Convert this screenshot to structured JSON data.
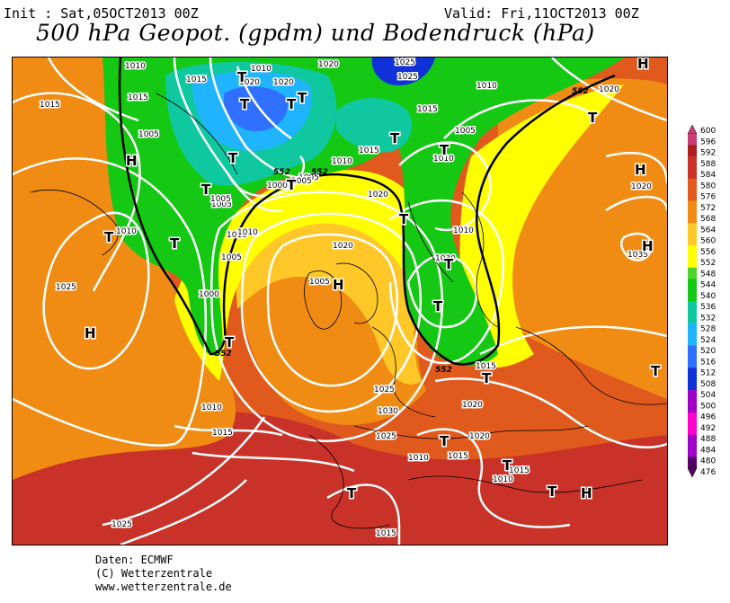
{
  "header": {
    "init": "Init : Sat,05OCT2013 00Z",
    "valid": "Valid: Fri,11OCT2013 00Z",
    "title": "500 hPa Geopot. (gpdm) und Bodendruck (hPa)"
  },
  "credits": {
    "line1": "Daten: ECMWF",
    "line2": "(C) Wetterzentrale",
    "line3": "www.wetterzentrale.de"
  },
  "colors": {
    "lowest": "#550066",
    "purple": "#a000c8",
    "magenta": "#ff00cc",
    "blue_dark": "#1030d8",
    "blue": "#3070ff",
    "cyan": "#20b4ff",
    "teal": "#10c8a0",
    "green": "#14c814",
    "green_light": "#50d228",
    "yellow": "#ffff00",
    "orange_light": "#ffc828",
    "orange": "#f08c14",
    "red_orange": "#e05a1e",
    "red": "#c83228",
    "red_dark": "#aa1e1e",
    "pink": "#c83c78"
  },
  "color_scale": {
    "labels": [
      "600",
      "596",
      "592",
      "588",
      "584",
      "580",
      "576",
      "572",
      "568",
      "564",
      "560",
      "556",
      "552",
      "548",
      "544",
      "540",
      "536",
      "532",
      "528",
      "524",
      "520",
      "516",
      "512",
      "508",
      "504",
      "500",
      "496",
      "492",
      "488",
      "484",
      "480",
      "476"
    ]
  },
  "map_labels": {
    "isobars": [
      "1010",
      "1015",
      "1020",
      "1015",
      "1015",
      "1005",
      "1010",
      "1020",
      "1025",
      "1025",
      "1020",
      "1010",
      "1000",
      "1005",
      "1010",
      "1005",
      "1010",
      "1020",
      "1015",
      "1015",
      "1010",
      "1005",
      "1010",
      "1030",
      "1020",
      "1005",
      "1025",
      "1030",
      "1005",
      "1010",
      "1005",
      "1000",
      "1005",
      "1010",
      "1025",
      "1020",
      "1035",
      "1015",
      "1025",
      "1020",
      "1010",
      "1020",
      "1015",
      "1010",
      "1015",
      "1015",
      "1010",
      "1025",
      "1015",
      "1020",
      "1010",
      "1015"
    ],
    "gpdm": [
      "552",
      "552",
      "552",
      "552",
      "552"
    ],
    "highs": [
      "H",
      "H",
      "H",
      "H",
      "H",
      "H",
      "H"
    ],
    "lows": [
      "T",
      "T",
      "T",
      "T",
      "T",
      "T",
      "T",
      "T",
      "T",
      "T",
      "T",
      "T",
      "T",
      "T",
      "T",
      "T",
      "T",
      "T",
      "T",
      "T",
      "T",
      "T"
    ]
  }
}
